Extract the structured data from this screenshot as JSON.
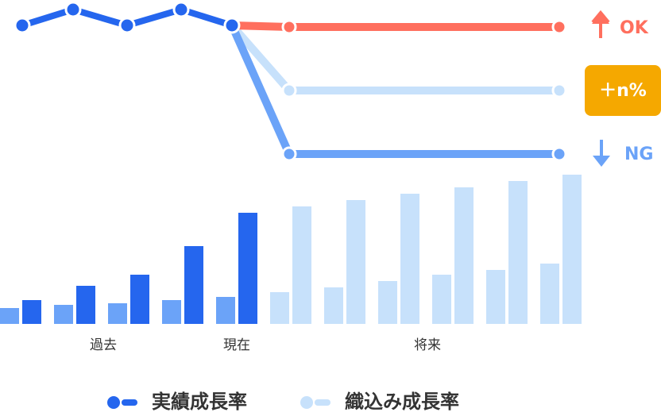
{
  "chart_data": {
    "type": "growth",
    "bar_series": [
      {
        "values": [
          20,
          24,
          26,
          30,
          34,
          40,
          46,
          54,
          62,
          68,
          76
        ],
        "colors": [
          "#6ba3f8",
          "#6ba3f8",
          "#6ba3f8",
          "#6ba3f8",
          "#6ba3f8",
          "#c7e1fb",
          "#c7e1fb",
          "#c7e1fb",
          "#c7e1fb",
          "#c7e1fb",
          "#c7e1fb"
        ]
      },
      {
        "values": [
          30,
          48,
          62,
          98,
          140,
          148,
          156,
          164,
          172,
          180,
          188
        ],
        "colors": [
          "#2566ee",
          "#2566ee",
          "#2566ee",
          "#2566ee",
          "#2566ee",
          "#c7e1fb",
          "#c7e1fb",
          "#c7e1fb",
          "#c7e1fb",
          "#c7e1fb",
          "#c7e1fb"
        ]
      }
    ],
    "periods": [
      "過去",
      "現在",
      "将来"
    ],
    "line": {
      "values": [
        168,
        188,
        168,
        188,
        168
      ],
      "color": "#2566ee"
    },
    "scenarios": [
      {
        "label": "OK",
        "value": 166,
        "color": "#ff6f5e"
      },
      {
        "label": "＋n%",
        "value": 86,
        "color": "#c7e1fb"
      },
      {
        "label": "NG",
        "value": 6,
        "color": "#6ba3f8"
      }
    ],
    "legend": [
      {
        "name": "実績成長率",
        "color": "#2566ee"
      },
      {
        "name": "織込み成長率",
        "color": "#c7e1fb"
      }
    ]
  }
}
